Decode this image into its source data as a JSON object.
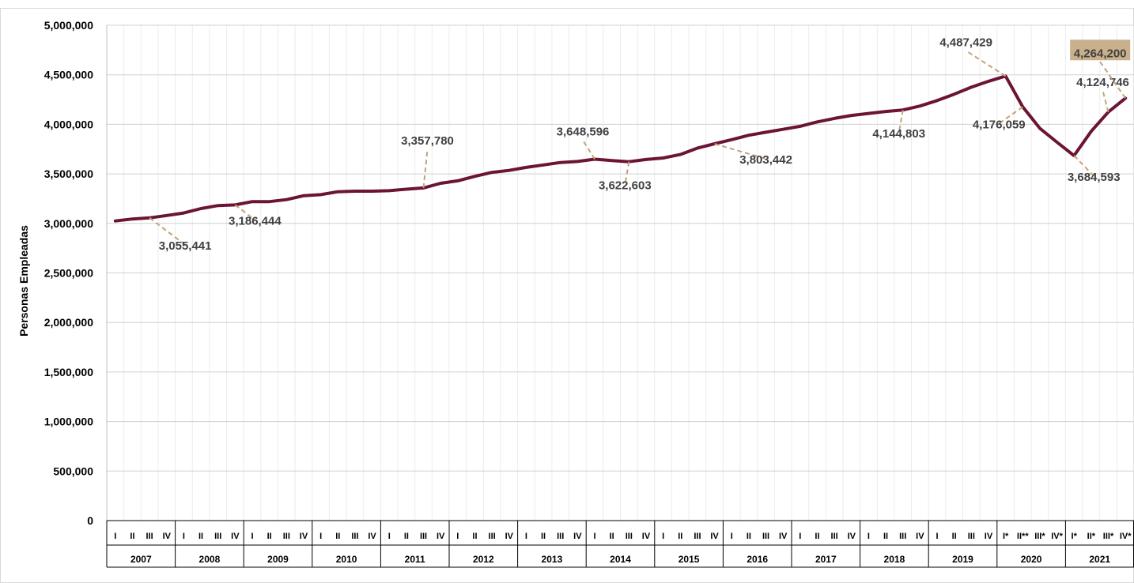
{
  "chart_data": {
    "type": "line",
    "ylabel": "Personas  Empleadas",
    "ylim": [
      0,
      5000000
    ],
    "yticks": [
      "0",
      "500,000",
      "1,000,000",
      "1,500,000",
      "2,000,000",
      "2,500,000",
      "3,000,000",
      "3,500,000",
      "4,000,000",
      "4,500,000",
      "5,000,000"
    ],
    "grid": true,
    "years": [
      "2007",
      "2008",
      "2009",
      "2010",
      "2011",
      "2012",
      "2013",
      "2014",
      "2015",
      "2016",
      "2017",
      "2018",
      "2019",
      "2020",
      "2021"
    ],
    "quarters": [
      [
        "I",
        "II",
        "III",
        "IV"
      ],
      [
        "I",
        "II",
        "III",
        "IV"
      ],
      [
        "I",
        "II",
        "III",
        "IV"
      ],
      [
        "I",
        "II",
        "III",
        "IV"
      ],
      [
        "I",
        "II",
        "III",
        "IV"
      ],
      [
        "I",
        "II",
        "III",
        "IV"
      ],
      [
        "I",
        "II",
        "III",
        "IV"
      ],
      [
        "I",
        "II",
        "III",
        "IV"
      ],
      [
        "I",
        "II",
        "III",
        "IV"
      ],
      [
        "I",
        "II",
        "III",
        "IV"
      ],
      [
        "I",
        "II",
        "III",
        "IV"
      ],
      [
        "I",
        "II",
        "III",
        "IV"
      ],
      [
        "I",
        "II",
        "III",
        "IV"
      ],
      [
        "I*",
        "II**",
        "III*",
        "IV*"
      ],
      [
        "I*",
        "II*",
        "III*",
        "IV*"
      ]
    ],
    "series": [
      {
        "color": "#6b1434",
        "values": [
          3025000,
          3045000,
          3055441,
          3080000,
          3105000,
          3150000,
          3180000,
          3186444,
          3220000,
          3220000,
          3240000,
          3280000,
          3290000,
          3320000,
          3325000,
          3325000,
          3330000,
          3345000,
          3357780,
          3405000,
          3430000,
          3475000,
          3515000,
          3535000,
          3565000,
          3590000,
          3615000,
          3625000,
          3648596,
          3635000,
          3622603,
          3645000,
          3660000,
          3695000,
          3760000,
          3803442,
          3845000,
          3890000,
          3920000,
          3950000,
          3980000,
          4025000,
          4060000,
          4090000,
          4110000,
          4130000,
          4144803,
          4185000,
          4240000,
          4305000,
          4375000,
          4435000,
          4487429,
          4176059,
          3960000,
          3820000,
          3684593,
          3930000,
          4124746,
          4264200
        ]
      }
    ],
    "data_labels": [
      {
        "index": 2,
        "text": "3,055,441"
      },
      {
        "index": 7,
        "text": "3,186,444"
      },
      {
        "index": 18,
        "text": "3,357,780"
      },
      {
        "index": 28,
        "text": "3,648,596"
      },
      {
        "index": 30,
        "text": "3,622,603"
      },
      {
        "index": 35,
        "text": "3,803,442"
      },
      {
        "index": 46,
        "text": "4,144,803"
      },
      {
        "index": 52,
        "text": "4,487,429"
      },
      {
        "index": 53,
        "text": "4,176,059"
      },
      {
        "index": 56,
        "text": "3,684,593"
      },
      {
        "index": 58,
        "text": "4,124,746"
      },
      {
        "index": 59,
        "text": "4,264,200",
        "highlight": true
      }
    ],
    "colors": {
      "line": "#6b1434",
      "leader": "#c4a27a",
      "highlight_bg": "#c9b08c",
      "grid": "#d0d0d0",
      "minor_grid": "#ececec"
    }
  }
}
